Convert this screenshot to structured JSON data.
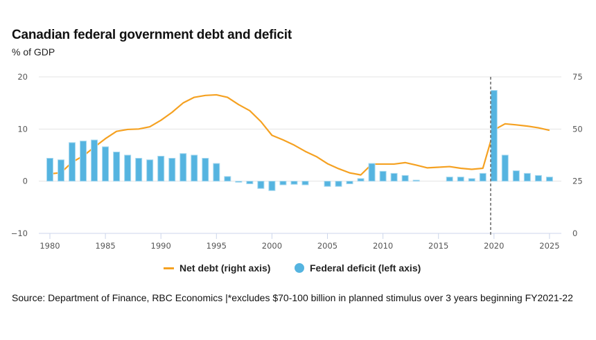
{
  "header": {
    "title": "Canadian federal government debt and deficit",
    "subtitle": "% of GDP"
  },
  "legend": {
    "net_debt": "Net debt (right axis)",
    "federal_deficit": "Federal deficit (left axis)"
  },
  "source": "Source: Department of Finance, RBC Economics |*excludes $70-100 billion in planned stimulus over 3 years beginning FY2021-22",
  "colors": {
    "bar": "#55b4e0",
    "bar_border": "#a8d9f0",
    "line": "#f5a121",
    "grid": "#e3e3e3",
    "marker_line": "#666666"
  },
  "chart_data": {
    "type": "bar+line",
    "title": "Canadian federal government debt and deficit",
    "subtitle": "% of GDP",
    "xlabel": "",
    "x": [
      1980,
      1981,
      1982,
      1983,
      1984,
      1985,
      1986,
      1987,
      1988,
      1989,
      1990,
      1991,
      1992,
      1993,
      1994,
      1995,
      1996,
      1997,
      1998,
      1999,
      2000,
      2001,
      2002,
      2003,
      2004,
      2005,
      2006,
      2007,
      2008,
      2009,
      2010,
      2011,
      2012,
      2013,
      2014,
      2015,
      2016,
      2017,
      2018,
      2019,
      2020,
      2021,
      2022,
      2023,
      2024,
      2025
    ],
    "x_ticks": [
      "1980",
      "1985",
      "1990",
      "1995",
      "2000",
      "2005",
      "2010",
      "2015",
      "2020",
      "2025"
    ],
    "x_tick_values": [
      1980,
      1985,
      1990,
      1995,
      2000,
      2005,
      2010,
      2015,
      2020,
      2025
    ],
    "xlim": [
      1979.5,
      2026
    ],
    "left_axis": {
      "label": "Federal deficit",
      "ylim": [
        -10,
        20
      ],
      "ticks": [
        20,
        10,
        0,
        -10
      ],
      "tick_labels": [
        "20",
        "10",
        "0",
        "−10"
      ]
    },
    "right_axis": {
      "label": "Net debt",
      "ylim": [
        0,
        75
      ],
      "ticks": [
        75,
        50,
        25,
        0
      ],
      "tick_labels": [
        "75",
        "50",
        "25",
        "0"
      ]
    },
    "grid": true,
    "legend_position": "bottom",
    "vertical_marker": {
      "x": 2019.7,
      "style": "dashed"
    },
    "series": [
      {
        "name": "Federal deficit (left axis)",
        "type": "bar",
        "axis": "left",
        "values": [
          4.4,
          4.1,
          7.4,
          7.7,
          7.9,
          6.6,
          5.6,
          5.0,
          4.4,
          4.1,
          4.8,
          4.4,
          5.3,
          5.0,
          4.4,
          3.4,
          0.9,
          -0.2,
          -0.5,
          -1.4,
          -1.8,
          -0.7,
          -0.6,
          -0.7,
          0.0,
          -1.0,
          -1.0,
          -0.5,
          0.5,
          3.4,
          1.9,
          1.5,
          1.1,
          0.2,
          0.0,
          0.0,
          0.8,
          0.8,
          0.5,
          1.5,
          17.4,
          5.0,
          2.0,
          1.5,
          1.1,
          0.8
        ]
      },
      {
        "name": "Net debt (right axis)",
        "type": "line",
        "axis": "right",
        "values": [
          28.5,
          29.1,
          34.1,
          37.1,
          41.3,
          45.4,
          48.9,
          49.8,
          50.0,
          51.1,
          54.2,
          58.0,
          62.5,
          65.2,
          66.1,
          66.4,
          65.2,
          61.7,
          58.8,
          53.6,
          47.0,
          44.8,
          42.3,
          39.3,
          36.8,
          33.4,
          31.0,
          29.0,
          28.0,
          33.2,
          33.2,
          33.2,
          33.9,
          32.7,
          31.4,
          31.7,
          32.0,
          31.2,
          30.7,
          31.2,
          49.6,
          52.5,
          52.0,
          51.4,
          50.6,
          49.4
        ]
      }
    ]
  }
}
